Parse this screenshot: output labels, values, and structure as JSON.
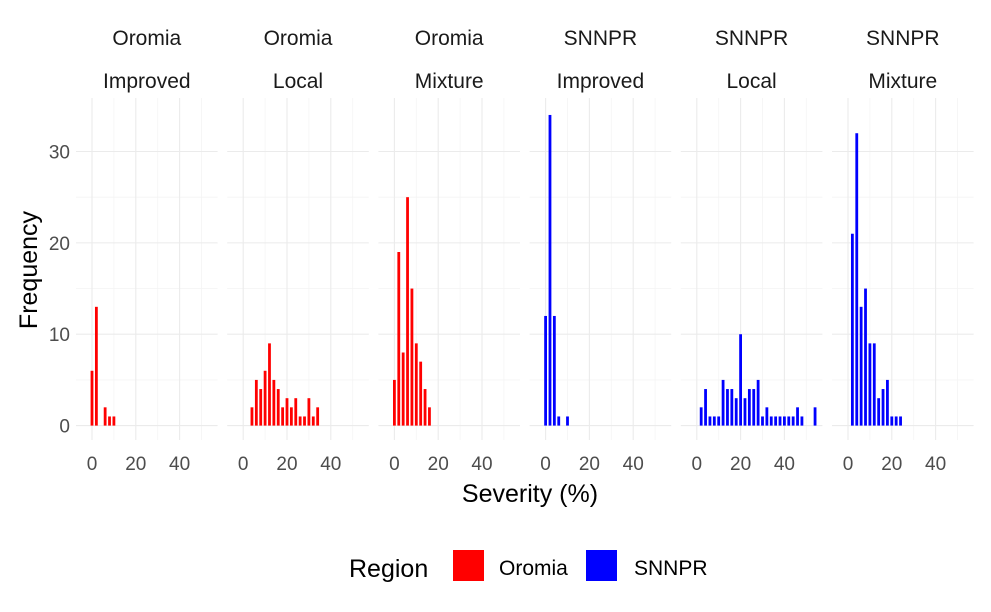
{
  "chart_data": {
    "type": "bar",
    "xlabel": "Severity (%)",
    "ylabel": "Frequency",
    "xticks": [
      0,
      20,
      40
    ],
    "yticks": [
      0,
      10,
      20,
      30
    ],
    "xlim": [
      -4,
      58
    ],
    "ylim": [
      0,
      35
    ],
    "grid": true,
    "legend": {
      "title": "Region",
      "position": "bottom",
      "entries": [
        {
          "name": "Oromia",
          "color": "#ff0000"
        },
        {
          "name": "SNNPR",
          "color": "#0000ff"
        }
      ]
    },
    "panels": [
      {
        "region": "Oromia",
        "variety": "Improved",
        "color": "#ff0000",
        "x": [
          0,
          2,
          6,
          8,
          10
        ],
        "values": [
          6,
          13,
          2,
          1,
          1
        ]
      },
      {
        "region": "Oromia",
        "variety": "Local",
        "color": "#ff0000",
        "x": [
          4,
          6,
          8,
          10,
          12,
          14,
          16,
          18,
          20,
          22,
          24,
          26,
          28,
          30,
          32,
          34
        ],
        "values": [
          2,
          5,
          4,
          6,
          9,
          5,
          4,
          2,
          3,
          2,
          3,
          1,
          1,
          3,
          1,
          2
        ]
      },
      {
        "region": "Oromia",
        "variety": "Mixture",
        "color": "#ff0000",
        "x": [
          0,
          2,
          4,
          6,
          8,
          10,
          12,
          14,
          16
        ],
        "values": [
          5,
          19,
          8,
          25,
          15,
          9,
          7,
          4,
          2
        ]
      },
      {
        "region": "SNNPR",
        "variety": "Improved",
        "color": "#0000ff",
        "x": [
          0,
          2,
          4,
          6,
          10
        ],
        "values": [
          12,
          34,
          12,
          1,
          1
        ]
      },
      {
        "region": "SNNPR",
        "variety": "Local",
        "color": "#0000ff",
        "x": [
          2,
          4,
          6,
          8,
          10,
          12,
          14,
          16,
          18,
          20,
          22,
          24,
          26,
          28,
          30,
          32,
          34,
          36,
          38,
          40,
          42,
          44,
          46,
          48,
          54
        ],
        "values": [
          2,
          4,
          1,
          1,
          1,
          5,
          4,
          4,
          3,
          10,
          3,
          4,
          4,
          5,
          1,
          2,
          1,
          1,
          1,
          1,
          1,
          1,
          2,
          1,
          2
        ]
      },
      {
        "region": "SNNPR",
        "variety": "Mixture",
        "color": "#0000ff",
        "x": [
          2,
          4,
          6,
          8,
          10,
          12,
          14,
          16,
          18,
          20,
          22,
          24
        ],
        "values": [
          21,
          32,
          13,
          15,
          9,
          9,
          3,
          4,
          5,
          1,
          1,
          1
        ]
      }
    ]
  }
}
